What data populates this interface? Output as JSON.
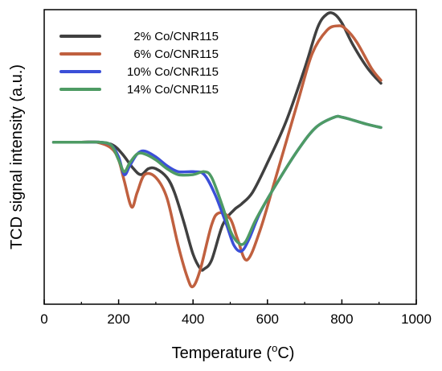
{
  "chart_data": {
    "type": "line",
    "xlabel_main": "Temperature (",
    "xlabel_sup": "o",
    "xlabel_end": "C)",
    "ylabel": "TCD signal intensity (a.u.)",
    "xlim": [
      0,
      1000
    ],
    "ylim": [
      0,
      1
    ],
    "x_ticks": [
      "0",
      "200",
      "400",
      "600",
      "800",
      "1000"
    ],
    "y_ticks_labeled": false,
    "grid": false,
    "legend_position": "top-left",
    "series": [
      {
        "name": "2% Co/CNR115",
        "color": "#404040",
        "x": [
          25,
          100,
          150,
          185,
          210,
          240,
          260,
          280,
          300,
          330,
          350,
          375,
          400,
          420,
          430,
          450,
          480,
          510,
          530,
          560,
          600,
          650,
          700,
          735,
          760,
          780,
          800,
          830,
          870,
          905
        ],
        "y": [
          0.55,
          0.55,
          0.55,
          0.54,
          0.51,
          0.46,
          0.44,
          0.46,
          0.46,
          0.43,
          0.38,
          0.28,
          0.17,
          0.12,
          0.12,
          0.15,
          0.27,
          0.32,
          0.34,
          0.38,
          0.48,
          0.62,
          0.8,
          0.94,
          0.985,
          0.985,
          0.955,
          0.88,
          0.8,
          0.75
        ]
      },
      {
        "name": "6% Co/CNR115",
        "color": "#c0603f",
        "x": [
          25,
          100,
          140,
          180,
          200,
          215,
          235,
          250,
          270,
          300,
          330,
          360,
          385,
          400,
          420,
          450,
          470,
          500,
          520,
          545,
          580,
          620,
          680,
          720,
          760,
          790,
          810,
          840,
          880,
          905
        ],
        "y": [
          0.55,
          0.55,
          0.55,
          0.53,
          0.49,
          0.42,
          0.33,
          0.38,
          0.44,
          0.43,
          0.36,
          0.2,
          0.09,
          0.06,
          0.12,
          0.27,
          0.31,
          0.29,
          0.22,
          0.15,
          0.25,
          0.42,
          0.68,
          0.85,
          0.93,
          0.945,
          0.935,
          0.89,
          0.8,
          0.76
        ]
      },
      {
        "name": "10% Co/CNR115",
        "color": "#3b4fd8",
        "x": [
          25,
          100,
          150,
          180,
          200,
          215,
          230,
          250,
          270,
          300,
          330,
          360,
          400,
          430,
          460,
          490,
          510,
          530,
          550,
          580,
          620,
          680,
          730,
          780,
          800,
          830,
          870,
          905
        ],
        "y": [
          0.55,
          0.55,
          0.55,
          0.54,
          0.5,
          0.44,
          0.47,
          0.51,
          0.52,
          0.5,
          0.47,
          0.45,
          0.45,
          0.44,
          0.37,
          0.27,
          0.2,
          0.18,
          0.22,
          0.31,
          0.4,
          0.52,
          0.6,
          0.635,
          0.635,
          0.625,
          0.61,
          0.6
        ]
      },
      {
        "name": "14% Co/CNR115",
        "color": "#4e9b64",
        "x": [
          25,
          100,
          150,
          180,
          200,
          215,
          230,
          250,
          270,
          300,
          330,
          360,
          400,
          430,
          450,
          480,
          500,
          520,
          540,
          570,
          620,
          680,
          730,
          780,
          800,
          830,
          870,
          905
        ],
        "y": [
          0.55,
          0.55,
          0.55,
          0.54,
          0.49,
          0.45,
          0.48,
          0.51,
          0.51,
          0.49,
          0.46,
          0.44,
          0.44,
          0.45,
          0.43,
          0.33,
          0.25,
          0.21,
          0.21,
          0.29,
          0.4,
          0.52,
          0.6,
          0.635,
          0.635,
          0.625,
          0.61,
          0.6
        ]
      }
    ]
  }
}
